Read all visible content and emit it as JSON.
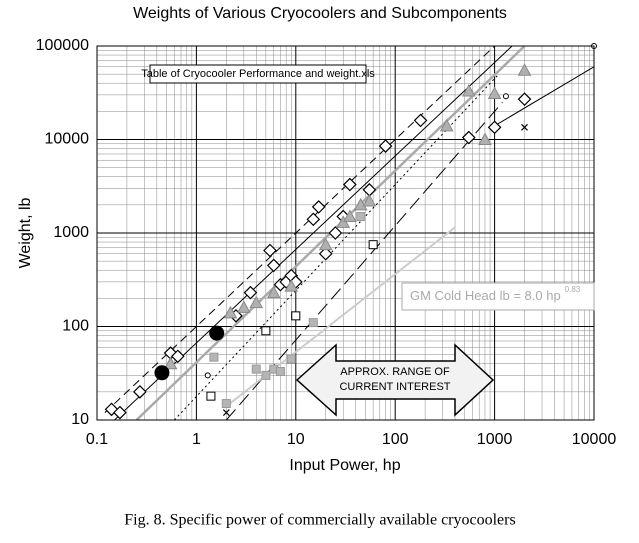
{
  "chart_data": {
    "type": "scatter",
    "title": "Weights of Various Cryocoolers and Subcomponents",
    "xlabel": "Input Power, hp",
    "ylabel": "Weight, lb",
    "caption": "Fig. 8. Specific power of commercially available cryocoolers",
    "xscale": "log",
    "yscale": "log",
    "xlim": [
      0.1,
      10000
    ],
    "ylim": [
      10,
      100000
    ],
    "xticks": [
      0.1,
      1,
      10,
      100,
      1000,
      10000
    ],
    "yticks": [
      10,
      100,
      1000,
      10000,
      100000
    ],
    "grid": true,
    "minor_grid": true,
    "note": "Table of Cryocooler Performance and weight.xls",
    "fit_label": "GM Cold Head lb = 8.0 hp",
    "fit_exponent": "0.83",
    "arrow_text": [
      "APPROX. RANGE OF",
      "CURRENT INTEREST"
    ],
    "series": [
      {
        "marker": "diamond",
        "color": "#000000",
        "fill": "#ffffff",
        "x": [
          0.14,
          0.17,
          0.27,
          0.55,
          0.65,
          2.5,
          3.5,
          5.5,
          6,
          7,
          8,
          9,
          10,
          15,
          17,
          20,
          25,
          30,
          35,
          55,
          80,
          180,
          550,
          1000,
          2000
        ],
        "values": [
          13,
          12,
          20,
          52,
          48,
          130,
          230,
          650,
          450,
          280,
          300,
          350,
          300,
          1400,
          1900,
          600,
          1000,
          1500,
          3300,
          2900,
          8500,
          16000,
          10500,
          13500,
          27000
        ]
      },
      {
        "marker": "triangle",
        "color": "#888888",
        "fill": "#b0b0b0",
        "x": [
          0.55,
          2.2,
          3,
          4,
          6,
          9,
          20,
          30,
          35,
          45,
          55,
          330,
          550,
          800,
          1000,
          2000
        ],
        "values": [
          40,
          140,
          160,
          180,
          230,
          270,
          750,
          1300,
          1500,
          2000,
          2200,
          14000,
          33000,
          10000,
          31000,
          55000
        ]
      },
      {
        "marker": "square",
        "color": "#999999",
        "fill": "#b5b5b5",
        "x": [
          1.5,
          2,
          4,
          5,
          6,
          7,
          9,
          15,
          45
        ],
        "values": [
          47,
          15,
          35,
          30,
          35,
          33,
          45,
          110,
          1500
        ]
      },
      {
        "marker": "square",
        "color": "#000000",
        "fill": "#ffffff",
        "x": [
          1.4,
          5,
          10,
          60
        ],
        "values": [
          18,
          90,
          130,
          750
        ]
      },
      {
        "marker": "circle",
        "color": "#000000",
        "fill": "#ffffff",
        "x": [
          1.3,
          1300,
          10000
        ],
        "values": [
          30,
          29000,
          100000
        ]
      },
      {
        "marker": "dot",
        "color": "#000000",
        "fill": "#000000",
        "x": [
          0.45,
          1.6
        ],
        "values": [
          32,
          85
        ]
      },
      {
        "marker": "x",
        "color": "#000000",
        "fill": "none",
        "x": [
          2,
          2000
        ],
        "values": [
          12,
          13500
        ]
      }
    ],
    "lines": [
      {
        "color": "#000000",
        "dash": "8,5",
        "width": 1,
        "x": [
          0.12,
          1000
        ],
        "values": [
          12,
          100000
        ]
      },
      {
        "color": "#000000",
        "dash": "",
        "width": 1,
        "x": [
          0.15,
          1500
        ],
        "values": [
          10,
          100000
        ]
      },
      {
        "color": "#aaaaaa",
        "dash": "",
        "width": 2.5,
        "x": [
          0.25,
          2000
        ],
        "values": [
          10,
          100000
        ]
      },
      {
        "color": "#000000",
        "dash": "2,3",
        "width": 1,
        "x": [
          0.6,
          1100
        ],
        "values": [
          10,
          50000
        ]
      },
      {
        "color": "#000000",
        "dash": "",
        "width": 1,
        "x": [
          1000,
          10000
        ],
        "values": [
          14000,
          60000
        ]
      },
      {
        "color": "#000000",
        "dash": "14,6",
        "width": 1,
        "x": [
          2,
          1200
        ],
        "values": [
          10,
          25000
        ]
      },
      {
        "color": "#cccccc",
        "dash": "",
        "width": 2,
        "x": [
          2,
          400
        ],
        "values": [
          14,
          1150
        ]
      }
    ]
  }
}
